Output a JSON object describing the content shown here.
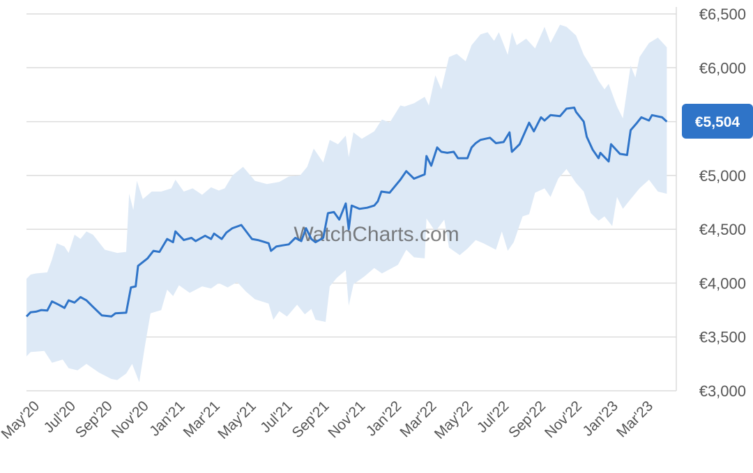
{
  "watermark": "WatchCharts.com",
  "colors": {
    "line": "#2f74c8",
    "band": "#dde9f6",
    "grid": "#dcdcdc",
    "tag": "#2f74c8",
    "tick_text": "#555555"
  },
  "chart_data": {
    "type": "line",
    "title": "",
    "xlabel": "",
    "ylabel": "",
    "ylim": [
      3000,
      6500
    ],
    "xlim": [
      "2020-04-15",
      "2023-04-15"
    ],
    "grid": true,
    "y_axis_side": "right",
    "y_ticks": [
      3000,
      3500,
      4000,
      4500,
      5000,
      5500,
      6000,
      6500
    ],
    "y_tick_labels": [
      "€3,000",
      "€3,500",
      "€4,000",
      "€4,500",
      "€5,000",
      "€5,500",
      "€6,000",
      "€6,500"
    ],
    "x_ticks": [
      "2020-05-01",
      "2020-07-01",
      "2020-09-01",
      "2020-11-01",
      "2021-01-01",
      "2021-03-01",
      "2021-05-01",
      "2021-07-01",
      "2021-09-01",
      "2021-11-01",
      "2022-01-01",
      "2022-03-01",
      "2022-05-01",
      "2022-07-01",
      "2022-09-01",
      "2022-11-01",
      "2023-01-01",
      "2023-03-01"
    ],
    "x_tick_labels": [
      "May'20",
      "Jul'20",
      "Sep'20",
      "Nov'20",
      "Jan'21",
      "Mar'21",
      "May'21",
      "Jul'21",
      "Sep'21",
      "Nov'21",
      "Jan'22",
      "Mar'22",
      "May'22",
      "Jul'22",
      "Sep'22",
      "Nov'22",
      "Jan'23",
      "Mar'23"
    ],
    "current_value_label": "€5,504",
    "current_value": 5504,
    "series": [
      {
        "values": [
          [
            "2020-04-15",
            3690
          ],
          [
            "2020-04-22",
            3730
          ],
          [
            "2020-05-01",
            3735
          ],
          [
            "2020-05-10",
            3750
          ],
          [
            "2020-05-20",
            3745
          ],
          [
            "2020-05-28",
            3830
          ],
          [
            "2020-06-08",
            3800
          ],
          [
            "2020-06-18",
            3770
          ],
          [
            "2020-06-25",
            3840
          ],
          [
            "2020-07-05",
            3820
          ],
          [
            "2020-07-15",
            3870
          ],
          [
            "2020-07-25",
            3840
          ],
          [
            "2020-08-05",
            3780
          ],
          [
            "2020-08-20",
            3700
          ],
          [
            "2020-09-05",
            3690
          ],
          [
            "2020-09-12",
            3720
          ],
          [
            "2020-09-30",
            3725
          ],
          [
            "2020-10-08",
            3960
          ],
          [
            "2020-10-16",
            3970
          ],
          [
            "2020-10-20",
            4160
          ],
          [
            "2020-11-05",
            4230
          ],
          [
            "2020-11-15",
            4300
          ],
          [
            "2020-11-25",
            4290
          ],
          [
            "2020-12-08",
            4410
          ],
          [
            "2020-12-18",
            4380
          ],
          [
            "2020-12-22",
            4480
          ],
          [
            "2021-01-05",
            4400
          ],
          [
            "2021-01-18",
            4420
          ],
          [
            "2021-01-25",
            4390
          ],
          [
            "2021-02-10",
            4440
          ],
          [
            "2021-02-20",
            4410
          ],
          [
            "2021-02-25",
            4460
          ],
          [
            "2021-03-10",
            4410
          ],
          [
            "2021-03-18",
            4470
          ],
          [
            "2021-03-28",
            4510
          ],
          [
            "2021-04-12",
            4540
          ],
          [
            "2021-04-30",
            4410
          ],
          [
            "2021-05-10",
            4400
          ],
          [
            "2021-05-28",
            4370
          ],
          [
            "2021-06-01",
            4300
          ],
          [
            "2021-06-10",
            4340
          ],
          [
            "2021-06-20",
            4350
          ],
          [
            "2021-07-01",
            4360
          ],
          [
            "2021-07-12",
            4420
          ],
          [
            "2021-07-22",
            4390
          ],
          [
            "2021-07-30",
            4510
          ],
          [
            "2021-08-08",
            4410
          ],
          [
            "2021-08-15",
            4380
          ],
          [
            "2021-08-28",
            4420
          ],
          [
            "2021-09-05",
            4650
          ],
          [
            "2021-09-15",
            4660
          ],
          [
            "2021-09-24",
            4590
          ],
          [
            "2021-10-05",
            4740
          ],
          [
            "2021-10-10",
            4500
          ],
          [
            "2021-10-15",
            4720
          ],
          [
            "2021-10-28",
            4690
          ],
          [
            "2021-11-10",
            4700
          ],
          [
            "2021-11-22",
            4720
          ],
          [
            "2021-11-28",
            4760
          ],
          [
            "2021-12-04",
            4850
          ],
          [
            "2021-12-18",
            4840
          ],
          [
            "2022-01-05",
            4960
          ],
          [
            "2022-01-15",
            5040
          ],
          [
            "2022-01-28",
            4970
          ],
          [
            "2022-02-15",
            5010
          ],
          [
            "2022-02-18",
            5180
          ],
          [
            "2022-02-26",
            5090
          ],
          [
            "2022-03-08",
            5260
          ],
          [
            "2022-03-15",
            5220
          ],
          [
            "2022-03-25",
            5210
          ],
          [
            "2022-04-05",
            5220
          ],
          [
            "2022-04-12",
            5160
          ],
          [
            "2022-04-28",
            5160
          ],
          [
            "2022-05-05",
            5260
          ],
          [
            "2022-05-12",
            5300
          ],
          [
            "2022-05-20",
            5330
          ],
          [
            "2022-06-05",
            5350
          ],
          [
            "2022-06-15",
            5300
          ],
          [
            "2022-06-28",
            5310
          ],
          [
            "2022-07-08",
            5400
          ],
          [
            "2022-07-12",
            5220
          ],
          [
            "2022-07-25",
            5290
          ],
          [
            "2022-08-10",
            5490
          ],
          [
            "2022-08-18",
            5410
          ],
          [
            "2022-08-30",
            5540
          ],
          [
            "2022-09-05",
            5510
          ],
          [
            "2022-09-15",
            5560
          ],
          [
            "2022-10-01",
            5550
          ],
          [
            "2022-10-12",
            5620
          ],
          [
            "2022-10-25",
            5630
          ],
          [
            "2022-10-28",
            5590
          ],
          [
            "2022-11-10",
            5500
          ],
          [
            "2022-11-15",
            5360
          ],
          [
            "2022-11-25",
            5240
          ],
          [
            "2022-12-05",
            5160
          ],
          [
            "2022-12-08",
            5210
          ],
          [
            "2022-12-22",
            5130
          ],
          [
            "2022-12-26",
            5290
          ],
          [
            "2023-01-10",
            5200
          ],
          [
            "2023-01-22",
            5190
          ],
          [
            "2023-01-28",
            5420
          ],
          [
            "2023-02-08",
            5490
          ],
          [
            "2023-02-15",
            5540
          ],
          [
            "2023-02-28",
            5510
          ],
          [
            "2023-03-05",
            5560
          ],
          [
            "2023-03-22",
            5540
          ],
          [
            "2023-03-30",
            5500
          ]
        ]
      }
    ],
    "band": {
      "upper": [
        [
          "2020-04-15",
          4040
        ],
        [
          "2020-04-22",
          4080
        ],
        [
          "2020-05-01",
          4090
        ],
        [
          "2020-05-20",
          4100
        ],
        [
          "2020-05-28",
          4220
        ],
        [
          "2020-06-05",
          4370
        ],
        [
          "2020-06-18",
          4340
        ],
        [
          "2020-06-25",
          4280
        ],
        [
          "2020-07-05",
          4450
        ],
        [
          "2020-07-15",
          4410
        ],
        [
          "2020-07-25",
          4480
        ],
        [
          "2020-08-05",
          4450
        ],
        [
          "2020-08-25",
          4310
        ],
        [
          "2020-09-15",
          4280
        ],
        [
          "2020-09-30",
          4290
        ],
        [
          "2020-10-05",
          4830
        ],
        [
          "2020-10-12",
          4680
        ],
        [
          "2020-10-18",
          4950
        ],
        [
          "2020-10-28",
          4780
        ],
        [
          "2020-11-12",
          4850
        ],
        [
          "2020-11-28",
          4850
        ],
        [
          "2020-12-15",
          4880
        ],
        [
          "2020-12-22",
          4960
        ],
        [
          "2021-01-05",
          4850
        ],
        [
          "2021-01-20",
          4880
        ],
        [
          "2021-02-05",
          4820
        ],
        [
          "2021-02-20",
          4890
        ],
        [
          "2021-03-05",
          4860
        ],
        [
          "2021-03-15",
          4880
        ],
        [
          "2021-03-28",
          5000
        ],
        [
          "2021-04-15",
          5080
        ],
        [
          "2021-05-05",
          4950
        ],
        [
          "2021-05-25",
          4920
        ],
        [
          "2021-06-15",
          4940
        ],
        [
          "2021-07-01",
          4990
        ],
        [
          "2021-07-20",
          5000
        ],
        [
          "2021-08-01",
          5080
        ],
        [
          "2021-08-12",
          5250
        ],
        [
          "2021-08-28",
          5120
        ],
        [
          "2021-09-08",
          5330
        ],
        [
          "2021-09-22",
          5290
        ],
        [
          "2021-10-05",
          5370
        ],
        [
          "2021-10-10",
          5170
        ],
        [
          "2021-10-18",
          5400
        ],
        [
          "2021-11-01",
          5340
        ],
        [
          "2021-11-22",
          5410
        ],
        [
          "2021-12-05",
          5520
        ],
        [
          "2021-12-18",
          5490
        ],
        [
          "2022-01-05",
          5650
        ],
        [
          "2022-01-12",
          5640
        ],
        [
          "2022-01-28",
          5670
        ],
        [
          "2022-02-15",
          5730
        ],
        [
          "2022-02-22",
          5650
        ],
        [
          "2022-03-05",
          5930
        ],
        [
          "2022-03-15",
          5800
        ],
        [
          "2022-03-28",
          6100
        ],
        [
          "2022-04-10",
          6130
        ],
        [
          "2022-04-25",
          6060
        ],
        [
          "2022-05-05",
          6210
        ],
        [
          "2022-05-20",
          6310
        ],
        [
          "2022-06-01",
          6330
        ],
        [
          "2022-06-12",
          6250
        ],
        [
          "2022-06-20",
          6330
        ],
        [
          "2022-07-05",
          6120
        ],
        [
          "2022-07-12",
          6330
        ],
        [
          "2022-07-20",
          6210
        ],
        [
          "2022-08-05",
          6270
        ],
        [
          "2022-08-20",
          6180
        ],
        [
          "2022-09-05",
          6380
        ],
        [
          "2022-09-15",
          6230
        ],
        [
          "2022-10-01",
          6400
        ],
        [
          "2022-10-12",
          6380
        ],
        [
          "2022-10-28",
          6300
        ],
        [
          "2022-11-10",
          6120
        ],
        [
          "2022-11-25",
          5990
        ],
        [
          "2022-12-05",
          5880
        ],
        [
          "2022-12-15",
          5800
        ],
        [
          "2022-12-22",
          5850
        ],
        [
          "2023-01-05",
          5640
        ],
        [
          "2023-01-15",
          5530
        ],
        [
          "2023-01-28",
          6020
        ],
        [
          "2023-02-05",
          5910
        ],
        [
          "2023-02-12",
          6100
        ],
        [
          "2023-02-28",
          6230
        ],
        [
          "2023-03-15",
          6280
        ],
        [
          "2023-03-30",
          6190
        ]
      ],
      "lower": [
        [
          "2020-04-15",
          3320
        ],
        [
          "2020-04-22",
          3360
        ],
        [
          "2020-05-15",
          3370
        ],
        [
          "2020-05-28",
          3260
        ],
        [
          "2020-06-15",
          3290
        ],
        [
          "2020-06-25",
          3210
        ],
        [
          "2020-07-10",
          3190
        ],
        [
          "2020-07-25",
          3250
        ],
        [
          "2020-08-15",
          3170
        ],
        [
          "2020-09-05",
          3110
        ],
        [
          "2020-09-15",
          3100
        ],
        [
          "2020-09-30",
          3160
        ],
        [
          "2020-10-10",
          3250
        ],
        [
          "2020-10-22",
          3080
        ],
        [
          "2020-11-01",
          3430
        ],
        [
          "2020-11-10",
          3720
        ],
        [
          "2020-11-28",
          3750
        ],
        [
          "2020-12-08",
          3940
        ],
        [
          "2020-12-18",
          3880
        ],
        [
          "2020-12-28",
          3980
        ],
        [
          "2021-01-15",
          3910
        ],
        [
          "2021-02-05",
          3970
        ],
        [
          "2021-02-20",
          3950
        ],
        [
          "2021-03-05",
          4000
        ],
        [
          "2021-03-20",
          3960
        ],
        [
          "2021-04-05",
          4010
        ],
        [
          "2021-04-20",
          3920
        ],
        [
          "2021-05-05",
          3850
        ],
        [
          "2021-05-28",
          3810
        ],
        [
          "2021-06-05",
          3660
        ],
        [
          "2021-06-15",
          3740
        ],
        [
          "2021-06-28",
          3690
        ],
        [
          "2021-07-15",
          3800
        ],
        [
          "2021-07-28",
          3710
        ],
        [
          "2021-08-08",
          3760
        ],
        [
          "2021-08-15",
          3660
        ],
        [
          "2021-09-01",
          3640
        ],
        [
          "2021-09-08",
          3970
        ],
        [
          "2021-09-20",
          4050
        ],
        [
          "2021-10-05",
          4120
        ],
        [
          "2021-10-10",
          3790
        ],
        [
          "2021-10-18",
          3990
        ],
        [
          "2021-11-05",
          4060
        ],
        [
          "2021-11-22",
          4140
        ],
        [
          "2021-12-05",
          4090
        ],
        [
          "2022-01-01",
          4170
        ],
        [
          "2022-01-15",
          4310
        ],
        [
          "2022-01-28",
          4240
        ],
        [
          "2022-02-15",
          4230
        ],
        [
          "2022-02-18",
          4600
        ],
        [
          "2022-03-05",
          4480
        ],
        [
          "2022-03-20",
          4590
        ],
        [
          "2022-03-28",
          4330
        ],
        [
          "2022-04-15",
          4260
        ],
        [
          "2022-04-28",
          4320
        ],
        [
          "2022-05-12",
          4400
        ],
        [
          "2022-05-25",
          4370
        ],
        [
          "2022-06-15",
          4310
        ],
        [
          "2022-06-25",
          4480
        ],
        [
          "2022-07-05",
          4300
        ],
        [
          "2022-07-15",
          4380
        ],
        [
          "2022-07-30",
          4620
        ],
        [
          "2022-08-10",
          4640
        ],
        [
          "2022-08-20",
          4840
        ],
        [
          "2022-09-05",
          4880
        ],
        [
          "2022-09-15",
          4800
        ],
        [
          "2022-09-28",
          4970
        ],
        [
          "2022-10-12",
          5060
        ],
        [
          "2022-10-28",
          4930
        ],
        [
          "2022-11-10",
          4850
        ],
        [
          "2022-11-22",
          4650
        ],
        [
          "2022-12-05",
          4580
        ],
        [
          "2022-12-15",
          4620
        ],
        [
          "2022-12-28",
          4530
        ],
        [
          "2023-01-05",
          4800
        ],
        [
          "2023-01-15",
          4690
        ],
        [
          "2023-01-28",
          4780
        ],
        [
          "2023-02-12",
          4880
        ],
        [
          "2023-02-28",
          4960
        ],
        [
          "2023-03-15",
          4850
        ],
        [
          "2023-03-30",
          4830
        ]
      ]
    }
  }
}
